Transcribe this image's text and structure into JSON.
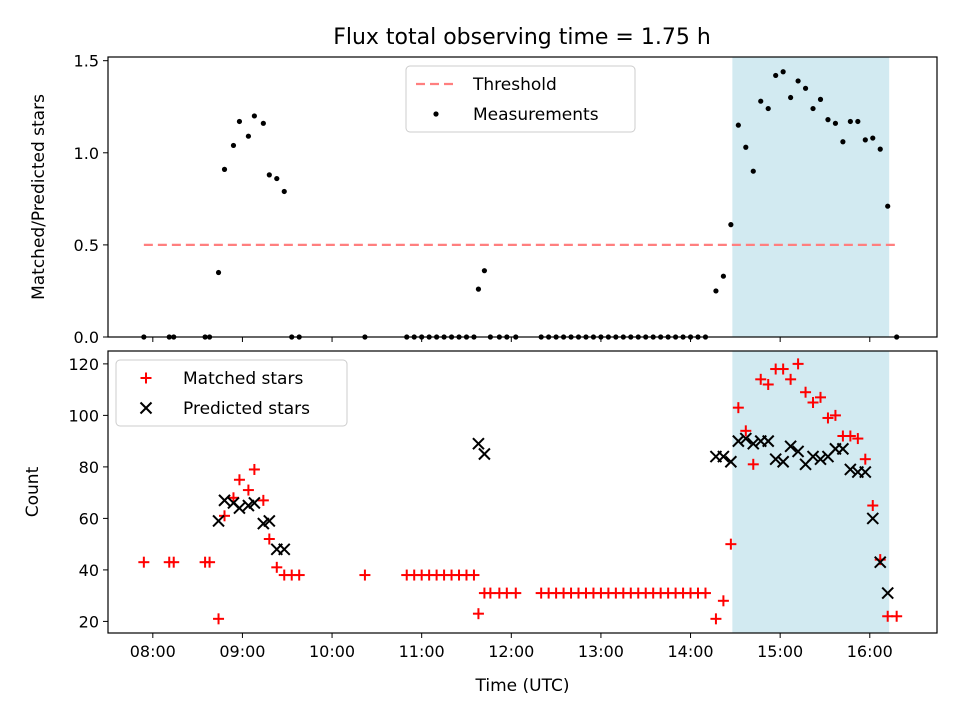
{
  "figure": {
    "title": "Flux total observing time = 1.75 h",
    "background": "#ffffff"
  },
  "colors": {
    "threshold": "#ff7f7f",
    "measurements": "#000000",
    "matched": "#ff0000",
    "predicted": "#000000",
    "span": "#add8e6"
  },
  "chart_data": [
    {
      "type": "scatter",
      "ylabel": "Matched/Predicted stars",
      "xlabel": "",
      "xlim": [
        "07:30",
        "16:45"
      ],
      "ylim": [
        0,
        1.52
      ],
      "yticks": [
        0.0,
        0.5,
        1.0,
        1.5
      ],
      "ytick_labels": [
        "0.0",
        "0.5",
        "1.0",
        "1.5"
      ],
      "xticks": [
        "08:00",
        "09:00",
        "10:00",
        "11:00",
        "12:00",
        "13:00",
        "14:00",
        "15:00",
        "16:00"
      ],
      "highlight_span": [
        "14:28",
        "16:13"
      ],
      "legend": {
        "position": "upper-center",
        "entries": [
          "Threshold",
          "Measurements"
        ]
      },
      "series": [
        {
          "name": "Threshold",
          "kind": "dashed-line",
          "points": [
            [
              "07:54",
              0.5
            ],
            [
              "16:20",
              0.5
            ]
          ]
        },
        {
          "name": "Measurements",
          "kind": "dots",
          "points": [
            [
              "07:54",
              0.0
            ],
            [
              "08:11",
              0.0
            ],
            [
              "08:14",
              0.0
            ],
            [
              "08:35",
              0.0
            ],
            [
              "08:38",
              0.0
            ],
            [
              "08:44",
              0.35
            ],
            [
              "08:48",
              0.91
            ],
            [
              "08:54",
              1.04
            ],
            [
              "08:58",
              1.17
            ],
            [
              "09:04",
              1.09
            ],
            [
              "09:08",
              1.2
            ],
            [
              "09:14",
              1.16
            ],
            [
              "09:18",
              0.88
            ],
            [
              "09:23",
              0.86
            ],
            [
              "09:28",
              0.79
            ],
            [
              "09:33",
              0.0
            ],
            [
              "09:38",
              0.0
            ],
            [
              "10:22",
              0.0
            ],
            [
              "10:50",
              0.0
            ],
            [
              "10:55",
              0.0
            ],
            [
              "11:00",
              0.0
            ],
            [
              "11:05",
              0.0
            ],
            [
              "11:10",
              0.0
            ],
            [
              "11:15",
              0.0
            ],
            [
              "11:20",
              0.0
            ],
            [
              "11:25",
              0.0
            ],
            [
              "11:30",
              0.0
            ],
            [
              "11:35",
              0.0
            ],
            [
              "11:38",
              0.26
            ],
            [
              "11:42",
              0.36
            ],
            [
              "11:46",
              0.0
            ],
            [
              "11:52",
              0.0
            ],
            [
              "11:57",
              0.0
            ],
            [
              "12:03",
              0.0
            ],
            [
              "12:20",
              0.0
            ],
            [
              "12:25",
              0.0
            ],
            [
              "12:30",
              0.0
            ],
            [
              "12:35",
              0.0
            ],
            [
              "12:40",
              0.0
            ],
            [
              "12:45",
              0.0
            ],
            [
              "12:50",
              0.0
            ],
            [
              "12:55",
              0.0
            ],
            [
              "13:00",
              0.0
            ],
            [
              "13:05",
              0.0
            ],
            [
              "13:10",
              0.0
            ],
            [
              "13:15",
              0.0
            ],
            [
              "13:20",
              0.0
            ],
            [
              "13:25",
              0.0
            ],
            [
              "13:30",
              0.0
            ],
            [
              "13:35",
              0.0
            ],
            [
              "13:40",
              0.0
            ],
            [
              "13:45",
              0.0
            ],
            [
              "13:50",
              0.0
            ],
            [
              "13:55",
              0.0
            ],
            [
              "14:00",
              0.0
            ],
            [
              "14:05",
              0.0
            ],
            [
              "14:10",
              0.0
            ],
            [
              "14:17",
              0.25
            ],
            [
              "14:22",
              0.33
            ],
            [
              "14:27",
              0.61
            ],
            [
              "14:32",
              1.15
            ],
            [
              "14:37",
              1.03
            ],
            [
              "14:42",
              0.9
            ],
            [
              "14:47",
              1.28
            ],
            [
              "14:52",
              1.24
            ],
            [
              "14:57",
              1.42
            ],
            [
              "15:02",
              1.44
            ],
            [
              "15:07",
              1.3
            ],
            [
              "15:12",
              1.39
            ],
            [
              "15:17",
              1.35
            ],
            [
              "15:22",
              1.24
            ],
            [
              "15:27",
              1.29
            ],
            [
              "15:32",
              1.18
            ],
            [
              "15:37",
              1.16
            ],
            [
              "15:42",
              1.06
            ],
            [
              "15:47",
              1.17
            ],
            [
              "15:52",
              1.17
            ],
            [
              "15:57",
              1.07
            ],
            [
              "16:02",
              1.08
            ],
            [
              "16:07",
              1.02
            ],
            [
              "16:12",
              0.71
            ],
            [
              "16:18",
              0.0
            ]
          ]
        }
      ]
    },
    {
      "type": "scatter",
      "ylabel": "Count",
      "xlabel": "Time (UTC)",
      "xlim": [
        "07:30",
        "16:45"
      ],
      "ylim": [
        15.5,
        125
      ],
      "yticks": [
        20,
        40,
        60,
        80,
        100,
        120
      ],
      "ytick_labels": [
        "20",
        "40",
        "60",
        "80",
        "100",
        "120"
      ],
      "xticks": [
        "08:00",
        "09:00",
        "10:00",
        "11:00",
        "12:00",
        "13:00",
        "14:00",
        "15:00",
        "16:00"
      ],
      "xtick_labels": [
        "08:00",
        "09:00",
        "10:00",
        "11:00",
        "12:00",
        "13:00",
        "14:00",
        "15:00",
        "16:00"
      ],
      "highlight_span": [
        "14:28",
        "16:13"
      ],
      "legend": {
        "position": "upper-left",
        "entries": [
          "Matched stars",
          "Predicted stars"
        ]
      },
      "series": [
        {
          "name": "Matched stars",
          "kind": "plus",
          "points": [
            [
              "07:54",
              43
            ],
            [
              "08:11",
              43
            ],
            [
              "08:14",
              43
            ],
            [
              "08:35",
              43
            ],
            [
              "08:38",
              43
            ],
            [
              "08:44",
              21
            ],
            [
              "08:48",
              61
            ],
            [
              "08:54",
              68
            ],
            [
              "08:58",
              75
            ],
            [
              "09:04",
              71
            ],
            [
              "09:08",
              79
            ],
            [
              "09:14",
              67
            ],
            [
              "09:18",
              52
            ],
            [
              "09:23",
              41
            ],
            [
              "09:28",
              38
            ],
            [
              "09:33",
              38
            ],
            [
              "09:38",
              38
            ],
            [
              "10:22",
              38
            ],
            [
              "10:50",
              38
            ],
            [
              "10:55",
              38
            ],
            [
              "11:00",
              38
            ],
            [
              "11:05",
              38
            ],
            [
              "11:10",
              38
            ],
            [
              "11:15",
              38
            ],
            [
              "11:20",
              38
            ],
            [
              "11:25",
              38
            ],
            [
              "11:30",
              38
            ],
            [
              "11:35",
              38
            ],
            [
              "11:38",
              23
            ],
            [
              "11:42",
              31
            ],
            [
              "11:46",
              31
            ],
            [
              "11:52",
              31
            ],
            [
              "11:57",
              31
            ],
            [
              "12:03",
              31
            ],
            [
              "12:20",
              31
            ],
            [
              "12:25",
              31
            ],
            [
              "12:30",
              31
            ],
            [
              "12:35",
              31
            ],
            [
              "12:40",
              31
            ],
            [
              "12:45",
              31
            ],
            [
              "12:50",
              31
            ],
            [
              "12:55",
              31
            ],
            [
              "13:00",
              31
            ],
            [
              "13:05",
              31
            ],
            [
              "13:10",
              31
            ],
            [
              "13:15",
              31
            ],
            [
              "13:20",
              31
            ],
            [
              "13:25",
              31
            ],
            [
              "13:30",
              31
            ],
            [
              "13:35",
              31
            ],
            [
              "13:40",
              31
            ],
            [
              "13:45",
              31
            ],
            [
              "13:50",
              31
            ],
            [
              "13:55",
              31
            ],
            [
              "14:00",
              31
            ],
            [
              "14:05",
              31
            ],
            [
              "14:10",
              31
            ],
            [
              "14:17",
              21
            ],
            [
              "14:22",
              28
            ],
            [
              "14:27",
              50
            ],
            [
              "14:32",
              103
            ],
            [
              "14:37",
              94
            ],
            [
              "14:42",
              81
            ],
            [
              "14:47",
              114
            ],
            [
              "14:52",
              112
            ],
            [
              "14:57",
              118
            ],
            [
              "15:02",
              118
            ],
            [
              "15:07",
              114
            ],
            [
              "15:12",
              120
            ],
            [
              "15:17",
              109
            ],
            [
              "15:22",
              105
            ],
            [
              "15:27",
              107
            ],
            [
              "15:32",
              99
            ],
            [
              "15:37",
              100
            ],
            [
              "15:42",
              92
            ],
            [
              "15:47",
              92
            ],
            [
              "15:52",
              91
            ],
            [
              "15:57",
              83
            ],
            [
              "16:02",
              65
            ],
            [
              "16:07",
              44
            ],
            [
              "16:12",
              22
            ],
            [
              "16:18",
              22
            ]
          ]
        },
        {
          "name": "Predicted stars",
          "kind": "cross",
          "points": [
            [
              "08:44",
              59
            ],
            [
              "08:48",
              67
            ],
            [
              "08:54",
              66
            ],
            [
              "08:58",
              64
            ],
            [
              "09:04",
              65
            ],
            [
              "09:08",
              66
            ],
            [
              "09:14",
              58
            ],
            [
              "09:18",
              59
            ],
            [
              "09:23",
              48
            ],
            [
              "09:28",
              48
            ],
            [
              "11:38",
              89
            ],
            [
              "11:42",
              85
            ],
            [
              "14:17",
              84
            ],
            [
              "14:22",
              84
            ],
            [
              "14:27",
              82
            ],
            [
              "14:32",
              90
            ],
            [
              "14:37",
              91
            ],
            [
              "14:42",
              89
            ],
            [
              "14:47",
              90
            ],
            [
              "14:52",
              90
            ],
            [
              "14:57",
              83
            ],
            [
              "15:02",
              82
            ],
            [
              "15:07",
              88
            ],
            [
              "15:12",
              86
            ],
            [
              "15:17",
              81
            ],
            [
              "15:22",
              84
            ],
            [
              "15:27",
              83
            ],
            [
              "15:32",
              84
            ],
            [
              "15:37",
              87
            ],
            [
              "15:42",
              87
            ],
            [
              "15:47",
              79
            ],
            [
              "15:52",
              78
            ],
            [
              "15:57",
              78
            ],
            [
              "16:02",
              60
            ],
            [
              "16:07",
              43
            ],
            [
              "16:12",
              31
            ]
          ]
        }
      ]
    }
  ]
}
